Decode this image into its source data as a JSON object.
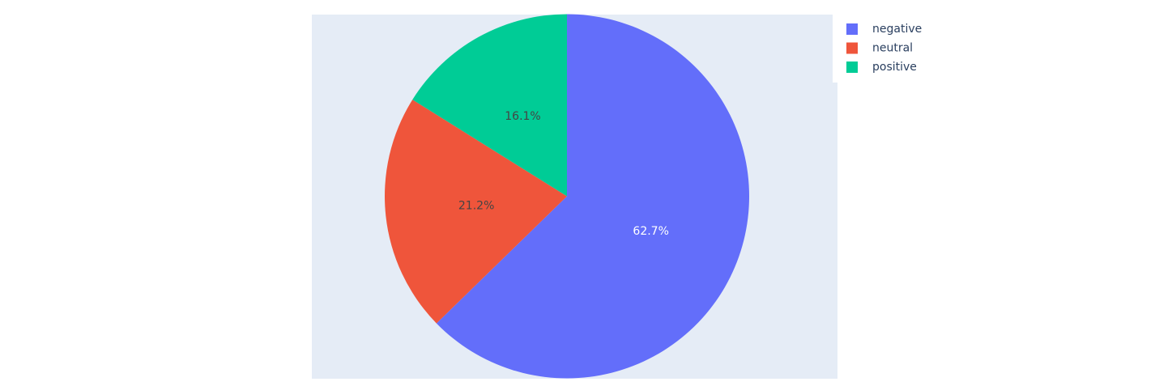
{
  "chart_data": {
    "type": "pie",
    "categories": [
      "negative",
      "neutral",
      "positive"
    ],
    "values": [
      62.7,
      21.2,
      16.1
    ],
    "labels": [
      "62.7%",
      "21.2%",
      "16.1%"
    ],
    "colors": [
      "#636efa",
      "#ef553b",
      "#00cc96"
    ],
    "label_colors": [
      "#ffffff",
      "#444444",
      "#444444"
    ],
    "start_angle_deg": 90,
    "direction": "clockwise",
    "plot_background": "#e5ecf6",
    "legend": {
      "placement": "top-right",
      "entries": [
        "negative",
        "neutral",
        "positive"
      ]
    },
    "title": "",
    "xlabel": "",
    "ylabel": ""
  }
}
